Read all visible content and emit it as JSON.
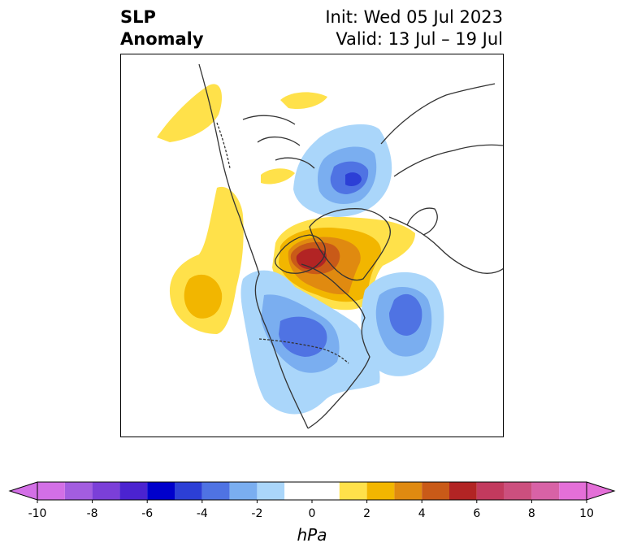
{
  "title": {
    "left_line1": "SLP",
    "left_line2": "Anomaly",
    "right_line1": "Init: Wed 05 Jul 2023",
    "right_line2": "Valid: 13 Jul – 19 Jul"
  },
  "colorbar": {
    "unit": "hPa",
    "tick_labels": [
      "-10",
      "-8",
      "-6",
      "-4",
      "-2",
      "0",
      "2",
      "4",
      "6",
      "8",
      "10"
    ],
    "tick_values": [
      -10,
      -8,
      -6,
      -4,
      -2,
      0,
      2,
      4,
      6,
      8,
      10
    ],
    "bin_edges": [
      -9,
      -8,
      -7,
      -6,
      -5,
      -4,
      -3,
      -2,
      -1,
      1,
      2,
      3,
      4,
      5,
      6,
      7,
      8,
      9
    ],
    "colors": [
      "#a35de0",
      "#7b3fd8",
      "#4b23d0",
      "#0000cc",
      "#2c3fd6",
      "#4f73e3",
      "#7aaef0",
      "#aad6fa",
      "#ffffff",
      "#ffe14a",
      "#f2b600",
      "#e08a10",
      "#c95a18",
      "#b22424",
      "#c23a5e",
      "#cc4f7e",
      "#d862a6"
    ],
    "under_color": "#d36fe6",
    "over_color": "#e46fd8"
  },
  "map_colors": {
    "neg_1": "#aad6fa",
    "neg_2": "#7aaef0",
    "neg_3": "#4f73e3",
    "neg_4": "#2c3fd6",
    "pos_1": "#ffe14a",
    "pos_2": "#f2b600",
    "pos_3": "#e08a10",
    "pos_4": "#c95a18",
    "pos_5": "#b22424",
    "coast": "#333333"
  }
}
